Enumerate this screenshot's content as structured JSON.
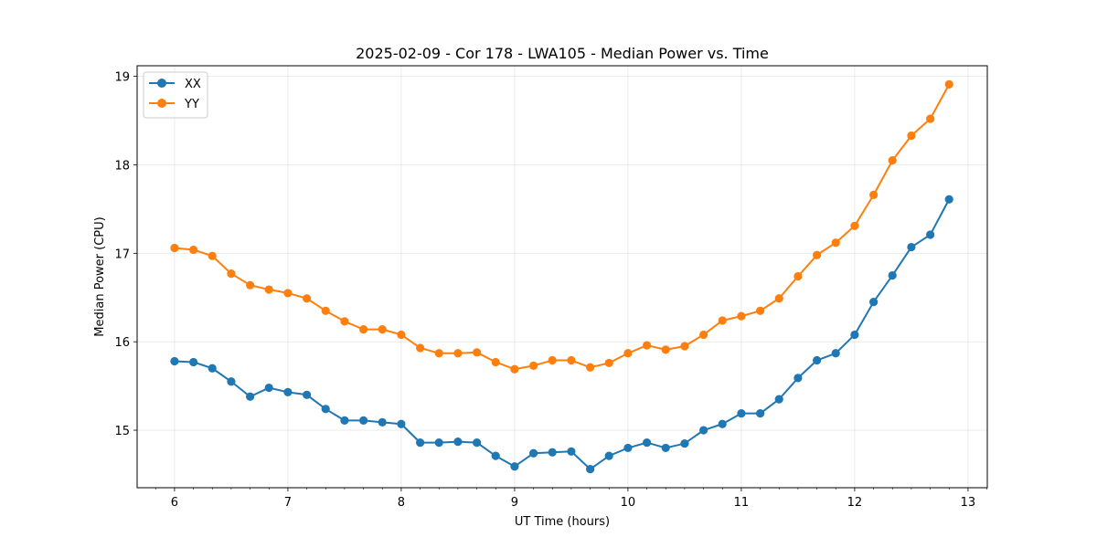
{
  "chart_data": {
    "type": "line",
    "title": "2025-02-09 - Cor 178 - LWA105 - Median Power vs. Time",
    "xlabel": "UT Time (hours)",
    "ylabel": "Median Power (CPU)",
    "xlim": [
      5.67,
      13.17
    ],
    "ylim": [
      14.35,
      19.12
    ],
    "xticks": [
      6,
      7,
      8,
      9,
      10,
      11,
      12,
      13
    ],
    "yticks": [
      15,
      16,
      17,
      18,
      19
    ],
    "grid": true,
    "legend_position": "top-left",
    "x": [
      6.0,
      6.167,
      6.333,
      6.5,
      6.667,
      6.833,
      7.0,
      7.167,
      7.333,
      7.5,
      7.667,
      7.833,
      8.0,
      8.167,
      8.333,
      8.5,
      8.667,
      8.833,
      9.0,
      9.167,
      9.333,
      9.5,
      9.667,
      9.833,
      10.0,
      10.167,
      10.333,
      10.5,
      10.667,
      10.833,
      11.0,
      11.167,
      11.333,
      11.5,
      11.667,
      11.833,
      12.0,
      12.167,
      12.333,
      12.5,
      12.667,
      12.833
    ],
    "series": [
      {
        "name": "XX",
        "color": "#1f77b4",
        "values": [
          15.78,
          15.77,
          15.7,
          15.55,
          15.38,
          15.48,
          15.43,
          15.4,
          15.24,
          15.11,
          15.11,
          15.09,
          15.07,
          14.86,
          14.86,
          14.87,
          14.86,
          14.71,
          14.59,
          14.74,
          14.75,
          14.76,
          14.56,
          14.71,
          14.8,
          14.86,
          14.8,
          14.85,
          15.0,
          15.07,
          15.19,
          15.19,
          15.35,
          15.59,
          15.79,
          15.87,
          16.08,
          16.45,
          16.75,
          17.07,
          17.21,
          17.61
        ]
      },
      {
        "name": "YY",
        "color": "#ff7f0e",
        "values": [
          17.06,
          17.04,
          16.97,
          16.77,
          16.64,
          16.59,
          16.55,
          16.49,
          16.35,
          16.23,
          16.14,
          16.14,
          16.08,
          15.93,
          15.87,
          15.87,
          15.88,
          15.77,
          15.69,
          15.73,
          15.79,
          15.79,
          15.71,
          15.76,
          15.87,
          15.96,
          15.91,
          15.95,
          16.08,
          16.24,
          16.29,
          16.35,
          16.49,
          16.74,
          16.98,
          17.12,
          17.31,
          17.66,
          18.05,
          18.33,
          18.52,
          18.91
        ]
      }
    ]
  }
}
